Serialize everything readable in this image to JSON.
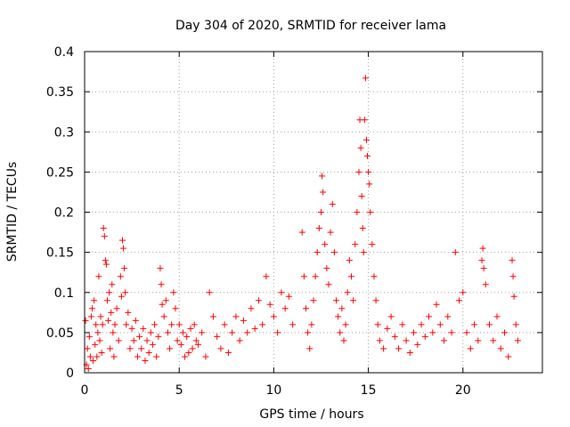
{
  "chart_data": {
    "type": "scatter",
    "title": "Day 304 of 2020, SRMTID for receiver lama",
    "xlabel": "GPS time / hours",
    "ylabel": "SRMTID / TECUs",
    "xlim": [
      0,
      24.2
    ],
    "ylim": [
      0,
      0.4
    ],
    "xticks": [
      0,
      5,
      10,
      15,
      20
    ],
    "xtick_labels": [
      "0",
      "5",
      "10",
      "15",
      "20"
    ],
    "yticks": [
      0,
      0.05,
      0.1,
      0.15,
      0.2,
      0.25,
      0.3,
      0.35,
      0.4
    ],
    "ytick_labels": [
      "0",
      "0.05",
      "0.1",
      "0.15",
      "0.2",
      "0.25",
      "0.3",
      "0.35",
      "0.4"
    ],
    "grid": true,
    "marker": "+",
    "marker_color": "#ff0000",
    "series": [
      {
        "name": "SRMTID",
        "points": [
          [
            0.05,
            0.065
          ],
          [
            0.1,
            0.01
          ],
          [
            0.15,
            0.03
          ],
          [
            0.2,
            0.005
          ],
          [
            0.25,
            0.045
          ],
          [
            0.3,
            0.02
          ],
          [
            0.35,
            0.07
          ],
          [
            0.4,
            0.08
          ],
          [
            0.45,
            0.015
          ],
          [
            0.5,
            0.09
          ],
          [
            0.55,
            0.035
          ],
          [
            0.6,
            0.06
          ],
          [
            0.65,
            0.02
          ],
          [
            0.7,
            0.05
          ],
          [
            0.75,
            0.12
          ],
          [
            0.8,
            0.04
          ],
          [
            0.85,
            0.07
          ],
          [
            0.9,
            0.025
          ],
          [
            0.95,
            0.06
          ],
          [
            1.0,
            0.18
          ],
          [
            1.05,
            0.17
          ],
          [
            1.1,
            0.14
          ],
          [
            1.15,
            0.135
          ],
          [
            1.2,
            0.09
          ],
          [
            1.25,
            0.065
          ],
          [
            1.3,
            0.1
          ],
          [
            1.35,
            0.03
          ],
          [
            1.4,
            0.075
          ],
          [
            1.45,
            0.11
          ],
          [
            1.5,
            0.05
          ],
          [
            1.55,
            0.02
          ],
          [
            1.6,
            0.06
          ],
          [
            1.7,
            0.08
          ],
          [
            1.8,
            0.04
          ],
          [
            1.9,
            0.12
          ],
          [
            1.95,
            0.095
          ],
          [
            2.0,
            0.165
          ],
          [
            2.05,
            0.155
          ],
          [
            2.1,
            0.13
          ],
          [
            2.15,
            0.1
          ],
          [
            2.2,
            0.06
          ],
          [
            2.3,
            0.075
          ],
          [
            2.4,
            0.03
          ],
          [
            2.5,
            0.055
          ],
          [
            2.6,
            0.04
          ],
          [
            2.7,
            0.065
          ],
          [
            2.8,
            0.02
          ],
          [
            2.9,
            0.045
          ],
          [
            3.0,
            0.03
          ],
          [
            3.1,
            0.055
          ],
          [
            3.2,
            0.015
          ],
          [
            3.3,
            0.04
          ],
          [
            3.4,
            0.025
          ],
          [
            3.5,
            0.05
          ],
          [
            3.6,
            0.035
          ],
          [
            3.7,
            0.06
          ],
          [
            3.8,
            0.02
          ],
          [
            3.9,
            0.045
          ],
          [
            4.0,
            0.13
          ],
          [
            4.05,
            0.11
          ],
          [
            4.1,
            0.085
          ],
          [
            4.2,
            0.07
          ],
          [
            4.3,
            0.09
          ],
          [
            4.4,
            0.05
          ],
          [
            4.5,
            0.03
          ],
          [
            4.6,
            0.06
          ],
          [
            4.7,
            0.1
          ],
          [
            4.8,
            0.08
          ],
          [
            4.9,
            0.04
          ],
          [
            5.0,
            0.06
          ],
          [
            5.1,
            0.035
          ],
          [
            5.2,
            0.05
          ],
          [
            5.3,
            0.02
          ],
          [
            5.4,
            0.045
          ],
          [
            5.5,
            0.025
          ],
          [
            5.6,
            0.055
          ],
          [
            5.7,
            0.03
          ],
          [
            5.8,
            0.06
          ],
          [
            5.9,
            0.04
          ],
          [
            6.0,
            0.035
          ],
          [
            6.2,
            0.05
          ],
          [
            6.4,
            0.02
          ],
          [
            6.6,
            0.1
          ],
          [
            6.8,
            0.07
          ],
          [
            7.0,
            0.045
          ],
          [
            7.2,
            0.03
          ],
          [
            7.4,
            0.06
          ],
          [
            7.6,
            0.025
          ],
          [
            7.8,
            0.05
          ],
          [
            8.0,
            0.07
          ],
          [
            8.2,
            0.04
          ],
          [
            8.4,
            0.065
          ],
          [
            8.6,
            0.05
          ],
          [
            8.8,
            0.08
          ],
          [
            9.0,
            0.055
          ],
          [
            9.2,
            0.09
          ],
          [
            9.4,
            0.06
          ],
          [
            9.6,
            0.12
          ],
          [
            9.8,
            0.085
          ],
          [
            10.0,
            0.07
          ],
          [
            10.2,
            0.05
          ],
          [
            10.4,
            0.1
          ],
          [
            10.6,
            0.08
          ],
          [
            10.8,
            0.095
          ],
          [
            11.0,
            0.06
          ],
          [
            11.5,
            0.175
          ],
          [
            11.6,
            0.12
          ],
          [
            11.7,
            0.08
          ],
          [
            11.8,
            0.05
          ],
          [
            11.9,
            0.03
          ],
          [
            12.0,
            0.06
          ],
          [
            12.1,
            0.09
          ],
          [
            12.2,
            0.12
          ],
          [
            12.3,
            0.15
          ],
          [
            12.4,
            0.18
          ],
          [
            12.5,
            0.2
          ],
          [
            12.55,
            0.245
          ],
          [
            12.6,
            0.225
          ],
          [
            12.7,
            0.16
          ],
          [
            12.8,
            0.13
          ],
          [
            12.9,
            0.11
          ],
          [
            13.0,
            0.175
          ],
          [
            13.1,
            0.21
          ],
          [
            13.2,
            0.15
          ],
          [
            13.3,
            0.09
          ],
          [
            13.4,
            0.07
          ],
          [
            13.5,
            0.05
          ],
          [
            13.6,
            0.08
          ],
          [
            13.7,
            0.04
          ],
          [
            13.8,
            0.06
          ],
          [
            13.9,
            0.1
          ],
          [
            14.0,
            0.14
          ],
          [
            14.1,
            0.12
          ],
          [
            14.2,
            0.09
          ],
          [
            14.3,
            0.16
          ],
          [
            14.4,
            0.2
          ],
          [
            14.5,
            0.25
          ],
          [
            14.55,
            0.315
          ],
          [
            14.6,
            0.28
          ],
          [
            14.65,
            0.22
          ],
          [
            14.7,
            0.18
          ],
          [
            14.75,
            0.15
          ],
          [
            14.8,
            0.315
          ],
          [
            14.85,
            0.367
          ],
          [
            14.9,
            0.29
          ],
          [
            14.95,
            0.27
          ],
          [
            15.0,
            0.25
          ],
          [
            15.05,
            0.235
          ],
          [
            15.1,
            0.2
          ],
          [
            15.2,
            0.16
          ],
          [
            15.3,
            0.12
          ],
          [
            15.4,
            0.09
          ],
          [
            15.5,
            0.06
          ],
          [
            15.6,
            0.04
          ],
          [
            15.8,
            0.03
          ],
          [
            16.0,
            0.055
          ],
          [
            16.2,
            0.07
          ],
          [
            16.4,
            0.045
          ],
          [
            16.6,
            0.03
          ],
          [
            16.8,
            0.06
          ],
          [
            17.0,
            0.04
          ],
          [
            17.2,
            0.025
          ],
          [
            17.4,
            0.05
          ],
          [
            17.6,
            0.035
          ],
          [
            17.8,
            0.06
          ],
          [
            18.0,
            0.045
          ],
          [
            18.2,
            0.07
          ],
          [
            18.4,
            0.05
          ],
          [
            18.6,
            0.085
          ],
          [
            18.8,
            0.06
          ],
          [
            19.0,
            0.04
          ],
          [
            19.2,
            0.07
          ],
          [
            19.4,
            0.05
          ],
          [
            19.6,
            0.15
          ],
          [
            19.8,
            0.09
          ],
          [
            20.0,
            0.1
          ],
          [
            20.2,
            0.05
          ],
          [
            20.4,
            0.03
          ],
          [
            20.6,
            0.06
          ],
          [
            20.8,
            0.04
          ],
          [
            21.0,
            0.14
          ],
          [
            21.05,
            0.155
          ],
          [
            21.1,
            0.13
          ],
          [
            21.2,
            0.11
          ],
          [
            21.4,
            0.06
          ],
          [
            21.6,
            0.04
          ],
          [
            21.8,
            0.07
          ],
          [
            22.0,
            0.03
          ],
          [
            22.2,
            0.05
          ],
          [
            22.4,
            0.02
          ],
          [
            22.6,
            0.14
          ],
          [
            22.65,
            0.12
          ],
          [
            22.7,
            0.095
          ],
          [
            22.8,
            0.06
          ],
          [
            22.9,
            0.04
          ]
        ]
      }
    ]
  }
}
